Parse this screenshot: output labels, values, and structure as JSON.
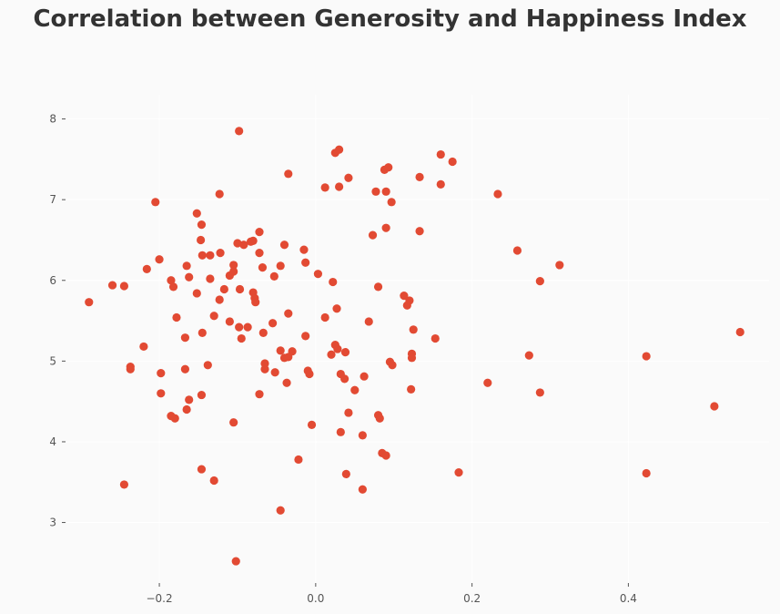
{
  "chart_data": {
    "type": "scatter",
    "title": "Correlation between Generosity and Happiness Index",
    "xlabel": "",
    "ylabel": "",
    "xlim": [
      -0.32,
      0.58
    ],
    "ylim": [
      2.25,
      8.3
    ],
    "xticks": [
      -0.2,
      0.0,
      0.2,
      0.4
    ],
    "xtick_labels": [
      "−0.2",
      "0.0",
      "0.2",
      "0.4"
    ],
    "yticks": [
      3,
      4,
      5,
      6,
      7,
      8
    ],
    "ytick_labels": [
      "3",
      "4",
      "5",
      "6",
      "7",
      "8"
    ],
    "grid": true,
    "marker_color": "#e24a33",
    "background_color": "#fafafa",
    "grid_color": "#ffffff",
    "points": [
      [
        -0.29,
        5.73
      ],
      [
        -0.26,
        5.94
      ],
      [
        -0.245,
        5.93
      ],
      [
        -0.245,
        3.47
      ],
      [
        -0.237,
        4.93
      ],
      [
        -0.237,
        4.9
      ],
      [
        -0.22,
        5.18
      ],
      [
        -0.216,
        6.14
      ],
      [
        -0.205,
        6.97
      ],
      [
        -0.2,
        6.26
      ],
      [
        -0.198,
        4.85
      ],
      [
        -0.198,
        4.6
      ],
      [
        -0.185,
        6.0
      ],
      [
        -0.182,
        5.92
      ],
      [
        -0.185,
        4.32
      ],
      [
        -0.18,
        4.29
      ],
      [
        -0.178,
        5.54
      ],
      [
        -0.167,
        5.29
      ],
      [
        -0.167,
        4.9
      ],
      [
        -0.165,
        6.18
      ],
      [
        -0.165,
        4.4
      ],
      [
        -0.162,
        6.04
      ],
      [
        -0.162,
        4.52
      ],
      [
        -0.152,
        6.83
      ],
      [
        -0.152,
        5.84
      ],
      [
        -0.147,
        6.5
      ],
      [
        -0.146,
        6.69
      ],
      [
        -0.146,
        4.58
      ],
      [
        -0.145,
        6.31
      ],
      [
        -0.145,
        5.35
      ],
      [
        -0.146,
        3.66
      ],
      [
        -0.135,
        6.31
      ],
      [
        -0.135,
        6.02
      ],
      [
        -0.138,
        4.95
      ],
      [
        -0.13,
        5.56
      ],
      [
        -0.13,
        3.52
      ],
      [
        -0.123,
        7.07
      ],
      [
        -0.122,
        6.34
      ],
      [
        -0.123,
        5.76
      ],
      [
        -0.117,
        5.89
      ],
      [
        -0.11,
        6.06
      ],
      [
        -0.11,
        5.49
      ],
      [
        -0.105,
        6.19
      ],
      [
        -0.105,
        6.11
      ],
      [
        -0.105,
        4.24
      ],
      [
        -0.102,
        2.52
      ],
      [
        -0.1,
        6.46
      ],
      [
        -0.098,
        7.85
      ],
      [
        -0.098,
        5.42
      ],
      [
        -0.097,
        5.89
      ],
      [
        -0.095,
        5.28
      ],
      [
        -0.092,
        6.44
      ],
      [
        -0.087,
        5.42
      ],
      [
        -0.083,
        6.48
      ],
      [
        -0.08,
        6.49
      ],
      [
        -0.08,
        5.85
      ],
      [
        -0.078,
        5.78
      ],
      [
        -0.077,
        5.73
      ],
      [
        -0.072,
        6.6
      ],
      [
        -0.072,
        6.34
      ],
      [
        -0.072,
        4.59
      ],
      [
        -0.068,
        6.16
      ],
      [
        -0.067,
        5.35
      ],
      [
        -0.065,
        4.97
      ],
      [
        -0.065,
        4.9
      ],
      [
        -0.053,
        6.05
      ],
      [
        -0.055,
        5.47
      ],
      [
        -0.052,
        4.86
      ],
      [
        -0.045,
        6.18
      ],
      [
        -0.045,
        5.13
      ],
      [
        -0.045,
        3.15
      ],
      [
        -0.04,
        6.44
      ],
      [
        -0.04,
        5.04
      ],
      [
        -0.035,
        7.32
      ],
      [
        -0.035,
        5.59
      ],
      [
        -0.037,
        4.73
      ],
      [
        -0.035,
        5.05
      ],
      [
        -0.03,
        5.12
      ],
      [
        -0.022,
        3.78
      ],
      [
        -0.015,
        6.38
      ],
      [
        -0.013,
        6.22
      ],
      [
        -0.013,
        5.31
      ],
      [
        -0.01,
        4.88
      ],
      [
        -0.008,
        4.84
      ],
      [
        -0.005,
        4.21
      ],
      [
        0.003,
        6.08
      ],
      [
        0.012,
        7.15
      ],
      [
        0.012,
        5.54
      ],
      [
        0.02,
        5.08
      ],
      [
        0.022,
        5.98
      ],
      [
        0.025,
        7.58
      ],
      [
        0.025,
        5.2
      ],
      [
        0.027,
        5.65
      ],
      [
        0.03,
        7.62
      ],
      [
        0.028,
        5.15
      ],
      [
        0.03,
        7.16
      ],
      [
        0.032,
        4.84
      ],
      [
        0.032,
        4.12
      ],
      [
        0.037,
        4.78
      ],
      [
        0.038,
        5.11
      ],
      [
        0.039,
        3.6
      ],
      [
        0.042,
        7.27
      ],
      [
        0.042,
        4.36
      ],
      [
        0.05,
        4.64
      ],
      [
        0.062,
        4.81
      ],
      [
        0.06,
        4.08
      ],
      [
        0.06,
        3.41
      ],
      [
        0.068,
        5.49
      ],
      [
        0.073,
        6.56
      ],
      [
        0.077,
        7.1
      ],
      [
        0.08,
        5.92
      ],
      [
        0.08,
        4.33
      ],
      [
        0.082,
        4.29
      ],
      [
        0.085,
        3.86
      ],
      [
        0.088,
        7.37
      ],
      [
        0.09,
        7.1
      ],
      [
        0.09,
        6.65
      ],
      [
        0.09,
        3.83
      ],
      [
        0.093,
        7.4
      ],
      [
        0.095,
        4.99
      ],
      [
        0.097,
        6.97
      ],
      [
        0.098,
        4.95
      ],
      [
        0.113,
        5.81
      ],
      [
        0.117,
        5.69
      ],
      [
        0.12,
        5.75
      ],
      [
        0.122,
        4.65
      ],
      [
        0.125,
        5.39
      ],
      [
        0.123,
        5.09
      ],
      [
        0.123,
        5.04
      ],
      [
        0.133,
        7.28
      ],
      [
        0.133,
        6.61
      ],
      [
        0.153,
        5.28
      ],
      [
        0.16,
        7.56
      ],
      [
        0.16,
        7.19
      ],
      [
        0.175,
        7.47
      ],
      [
        0.183,
        3.62
      ],
      [
        0.22,
        4.73
      ],
      [
        0.233,
        7.07
      ],
      [
        0.258,
        6.37
      ],
      [
        0.273,
        5.07
      ],
      [
        0.287,
        5.99
      ],
      [
        0.287,
        4.61
      ],
      [
        0.312,
        6.19
      ],
      [
        0.423,
        5.06
      ],
      [
        0.423,
        3.61
      ],
      [
        0.51,
        4.44
      ],
      [
        0.543,
        5.36
      ]
    ]
  }
}
